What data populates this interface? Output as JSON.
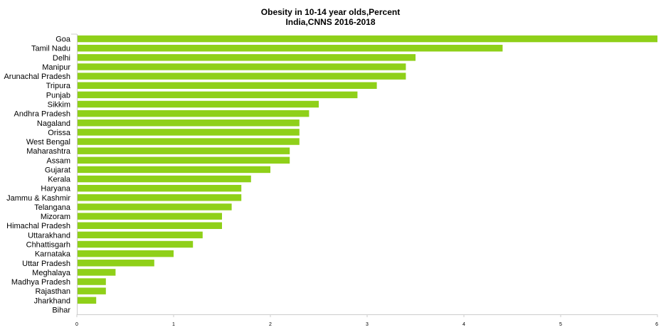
{
  "chart_data": {
    "type": "bar",
    "orientation": "horizontal",
    "title": [
      "Obesity in 10-14 year olds,Percent",
      "India,CNNS 2016-2018"
    ],
    "xlabel": "",
    "ylabel": "",
    "xlim": [
      0,
      6
    ],
    "x_ticks": [
      "0",
      "1",
      "2",
      "3",
      "4",
      "5",
      "6"
    ],
    "grid": false,
    "bar_color": "#8fd019",
    "categories": [
      "Goa",
      "Tamil Nadu",
      "Delhi",
      "Manipur",
      "Arunachal Pradesh",
      "Tripura",
      "Punjab",
      "Sikkim",
      "Andhra Pradesh",
      "Nagaland",
      "Orissa",
      "West Bengal",
      "Maharashtra",
      "Assam",
      "Gujarat",
      "Kerala",
      "Haryana",
      "Jammu & Kashmir",
      "Telangana",
      "Mizoram",
      "Himachal Pradesh",
      "Uttarakhand",
      "Chhattisgarh",
      "Karnataka",
      "Uttar Pradesh",
      "Meghalaya",
      "Madhya Pradesh",
      "Rajasthan",
      "Jharkhand",
      "Bihar"
    ],
    "values": [
      6.0,
      4.4,
      3.5,
      3.4,
      3.4,
      3.1,
      2.9,
      2.5,
      2.4,
      2.3,
      2.3,
      2.3,
      2.2,
      2.2,
      2.0,
      1.8,
      1.7,
      1.7,
      1.6,
      1.5,
      1.5,
      1.3,
      1.2,
      1.0,
      0.8,
      0.4,
      0.3,
      0.3,
      0.2,
      0.0
    ]
  }
}
